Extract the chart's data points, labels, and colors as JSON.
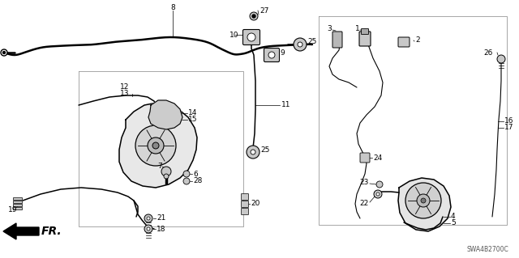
{
  "diagram_code": "SWA4B2700C",
  "fig_width": 6.4,
  "fig_height": 3.19,
  "background_color": "#ffffff",
  "image_data": ""
}
